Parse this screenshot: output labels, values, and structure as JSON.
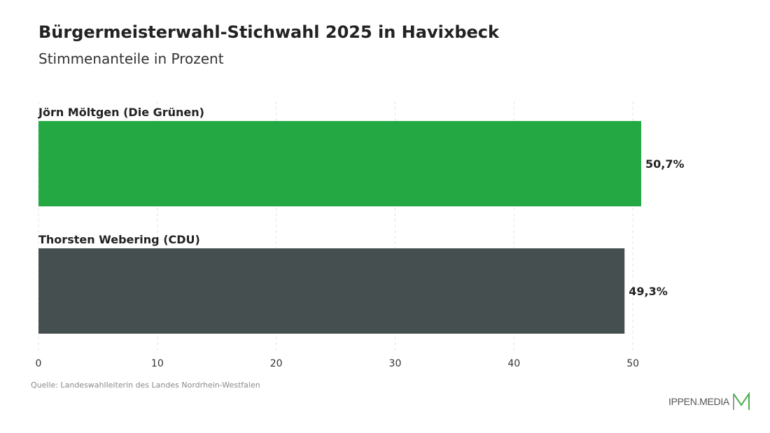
{
  "header": {
    "title": "Bürgermeisterwahl-Stichwahl 2025 in Havixbeck",
    "subtitle": "Stimmenanteile in Prozent"
  },
  "chart_data": {
    "type": "bar",
    "orientation": "horizontal",
    "categories": [
      "Jörn Möltgen (Die Grünen)",
      "Thorsten Webering (CDU)"
    ],
    "values": [
      50.7,
      49.3
    ],
    "value_labels": [
      "50,7%",
      "49,3%"
    ],
    "colors": [
      "#23a843",
      "#454f4f"
    ],
    "xlim": [
      0,
      50.7
    ],
    "xticks": [
      0,
      10,
      20,
      30,
      40,
      50
    ],
    "grid": true
  },
  "footer": {
    "source": "Quelle: Landeswahlleiterin des Landes Nordrhein-Westfalen",
    "brand": "IPPEN.MEDIA",
    "brand_colors": {
      "text": "#555555",
      "mark_gray": "#9a9a9a",
      "mark_green": "#4caf50"
    }
  }
}
